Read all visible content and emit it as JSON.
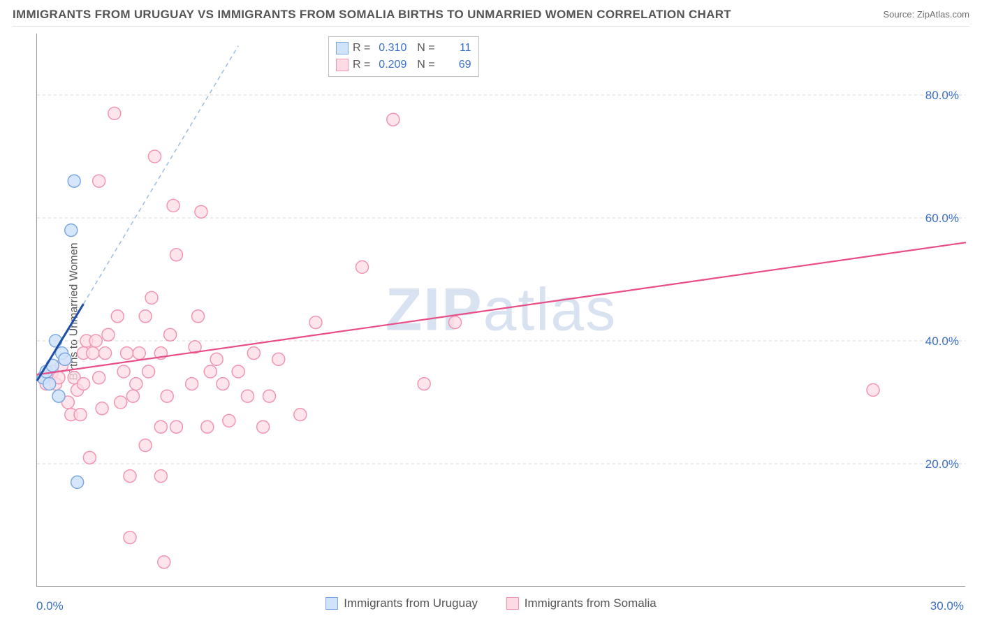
{
  "header": {
    "title": "IMMIGRANTS FROM URUGUAY VS IMMIGRANTS FROM SOMALIA BIRTHS TO UNMARRIED WOMEN CORRELATION CHART",
    "source": "Source: ZipAtlas.com"
  },
  "axes": {
    "ylabel": "Births to Unmarried Women",
    "ylim": [
      0,
      90
    ],
    "xlim": [
      0,
      30
    ],
    "yticks": [
      20,
      40,
      60,
      80
    ],
    "ytick_labels": [
      "20.0%",
      "40.0%",
      "60.0%",
      "80.0%"
    ],
    "xtick_min_label": "0.0%",
    "xtick_max_label": "30.0%",
    "grid_color": "#d5d5d5",
    "axis_color": "#9a9a9a",
    "tick_color": "#3b6fc9",
    "label_color": "#555555"
  },
  "watermark": {
    "bold": "ZIP",
    "rest": "atlas"
  },
  "series": {
    "uruguay": {
      "label": "Immigrants from Uruguay",
      "fill": "#cfe3fb",
      "stroke": "#7ba8e0",
      "trend_color": "#1e4ea8",
      "trend_dash_color": "#9fbde0",
      "R": "0.310",
      "N": "11",
      "points": [
        [
          0.2,
          34
        ],
        [
          0.3,
          35
        ],
        [
          0.4,
          33
        ],
        [
          0.5,
          36
        ],
        [
          0.6,
          40
        ],
        [
          0.7,
          31
        ],
        [
          0.8,
          38
        ],
        [
          0.9,
          37
        ],
        [
          1.1,
          58
        ],
        [
          1.2,
          66
        ],
        [
          1.3,
          17
        ]
      ],
      "trend_start": [
        0.0,
        33.5
      ],
      "trend_solid_end": [
        1.5,
        46
      ],
      "trend_dash_end": [
        6.5,
        88
      ]
    },
    "somalia": {
      "label": "Immigrants from Somalia",
      "fill": "#fddbe4",
      "stroke": "#f195b3",
      "trend_color": "#e94d87",
      "R": "0.209",
      "N": "69",
      "points": [
        [
          0.2,
          34
        ],
        [
          0.3,
          33
        ],
        [
          0.5,
          35
        ],
        [
          0.6,
          33
        ],
        [
          0.7,
          34
        ],
        [
          0.8,
          36
        ],
        [
          0.9,
          37
        ],
        [
          1.0,
          30
        ],
        [
          1.1,
          28
        ],
        [
          1.2,
          34
        ],
        [
          1.3,
          32
        ],
        [
          1.4,
          28
        ],
        [
          1.5,
          33
        ],
        [
          1.5,
          38
        ],
        [
          1.6,
          40
        ],
        [
          1.7,
          21
        ],
        [
          1.8,
          38
        ],
        [
          1.9,
          40
        ],
        [
          2.0,
          34
        ],
        [
          2.0,
          66
        ],
        [
          2.1,
          29
        ],
        [
          2.2,
          38
        ],
        [
          2.3,
          41
        ],
        [
          2.5,
          77
        ],
        [
          2.6,
          44
        ],
        [
          2.7,
          30
        ],
        [
          2.8,
          35
        ],
        [
          2.9,
          38
        ],
        [
          3.0,
          8
        ],
        [
          3.0,
          18
        ],
        [
          3.1,
          31
        ],
        [
          3.2,
          33
        ],
        [
          3.3,
          38
        ],
        [
          3.5,
          23
        ],
        [
          3.5,
          44
        ],
        [
          3.6,
          35
        ],
        [
          3.7,
          47
        ],
        [
          3.8,
          70
        ],
        [
          4.0,
          18
        ],
        [
          4.0,
          38
        ],
        [
          4.0,
          26
        ],
        [
          4.1,
          4
        ],
        [
          4.2,
          31
        ],
        [
          4.3,
          41
        ],
        [
          4.4,
          62
        ],
        [
          4.5,
          54
        ],
        [
          4.5,
          26
        ],
        [
          5.0,
          33
        ],
        [
          5.1,
          39
        ],
        [
          5.2,
          44
        ],
        [
          5.3,
          61
        ],
        [
          5.5,
          26
        ],
        [
          5.6,
          35
        ],
        [
          5.8,
          37
        ],
        [
          6.0,
          33
        ],
        [
          6.2,
          27
        ],
        [
          6.5,
          35
        ],
        [
          6.8,
          31
        ],
        [
          7.0,
          38
        ],
        [
          7.3,
          26
        ],
        [
          7.5,
          31
        ],
        [
          7.8,
          37
        ],
        [
          8.5,
          28
        ],
        [
          9.0,
          43
        ],
        [
          10.5,
          52
        ],
        [
          11.5,
          76
        ],
        [
          12.5,
          33
        ],
        [
          13.5,
          43
        ],
        [
          27.0,
          32
        ]
      ],
      "trend_start": [
        0.0,
        34.5
      ],
      "trend_end": [
        30.0,
        56
      ]
    }
  },
  "chart": {
    "type": "scatter",
    "marker_radius": 9,
    "marker_stroke_width": 1.5,
    "background_color": "#ffffff"
  }
}
